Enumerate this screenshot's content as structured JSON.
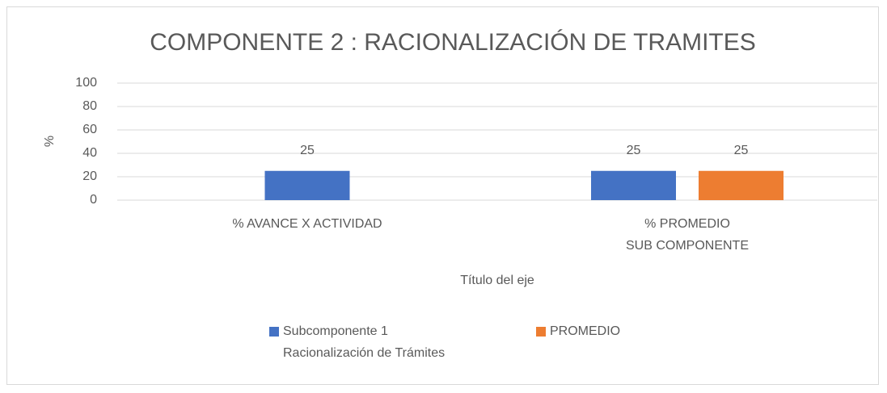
{
  "chart_data": {
    "type": "bar",
    "title": "COMPONENTE 2 : RACIONALIZACIÓN DE TRAMITES",
    "y_label": "%",
    "x_label": "Título del eje",
    "categories": [
      "% AVANCE X ACTIVIDAD",
      "% PROMEDIO\nSUB COMPONENTE"
    ],
    "series": [
      {
        "name": "Subcomponente 1 Racionalización de Trámites",
        "color": "#4472c4",
        "values": [
          25,
          25
        ]
      },
      {
        "name": "PROMEDIO",
        "color": "#ed7d31",
        "values": [
          null,
          25
        ]
      }
    ],
    "ylim": [
      0,
      100
    ],
    "yticks": [
      0,
      20,
      40,
      60,
      80,
      100
    ],
    "grid": true,
    "legend": "bottom"
  }
}
